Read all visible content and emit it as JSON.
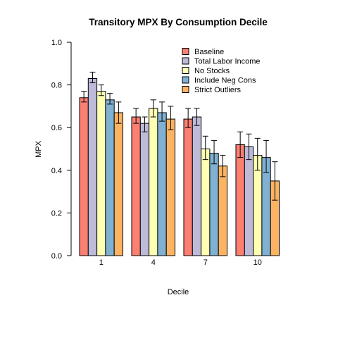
{
  "chart_data": {
    "type": "bar",
    "title": "Transitory MPX By Consumption Decile",
    "xlabel": "Decile",
    "ylabel": "MPX",
    "ylim": [
      0,
      1.0
    ],
    "yticks": [
      "0.0",
      "0.2",
      "0.4",
      "0.6",
      "0.8",
      "1.0"
    ],
    "categories": [
      "1",
      "4",
      "7",
      "10"
    ],
    "legend_position": "top-right",
    "grid": false,
    "series": [
      {
        "name": "Baseline",
        "color": "#FB8072",
        "values": [
          0.74,
          0.65,
          0.64,
          0.52
        ],
        "err_low": [
          0.72,
          0.62,
          0.6,
          0.46
        ],
        "err_high": [
          0.77,
          0.69,
          0.69,
          0.58
        ]
      },
      {
        "name": "Total Labor Income",
        "color": "#BEBADA",
        "values": [
          0.83,
          0.62,
          0.65,
          0.51
        ],
        "err_low": [
          0.81,
          0.58,
          0.61,
          0.45
        ],
        "err_high": [
          0.86,
          0.65,
          0.69,
          0.57
        ]
      },
      {
        "name": "No Stocks",
        "color": "#FFFFB3",
        "values": [
          0.77,
          0.69,
          0.5,
          0.47
        ],
        "err_low": [
          0.75,
          0.65,
          0.45,
          0.4
        ],
        "err_high": [
          0.8,
          0.73,
          0.56,
          0.55
        ]
      },
      {
        "name": "Include Neg Cons",
        "color": "#80B1D3",
        "values": [
          0.73,
          0.67,
          0.48,
          0.46
        ],
        "err_low": [
          0.71,
          0.63,
          0.43,
          0.39
        ],
        "err_high": [
          0.76,
          0.72,
          0.54,
          0.54
        ]
      },
      {
        "name": "Strict Outliers",
        "color": "#FDB462",
        "values": [
          0.67,
          0.64,
          0.42,
          0.35
        ],
        "err_low": [
          0.62,
          0.59,
          0.37,
          0.26
        ],
        "err_high": [
          0.72,
          0.7,
          0.47,
          0.44
        ]
      }
    ]
  }
}
